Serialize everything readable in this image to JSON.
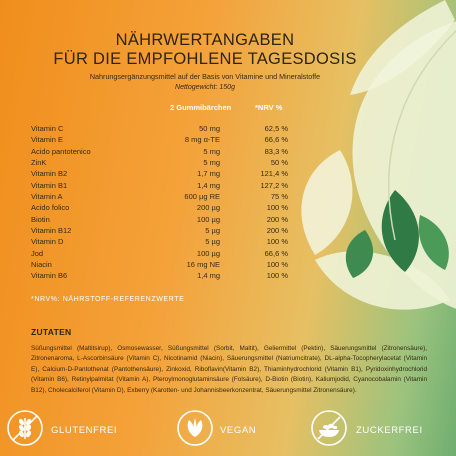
{
  "header": {
    "title_line1": "NÄHRWERTANGABEN",
    "title_line2": "FÜR DIE EMPFOHLENE TAGESDOSIS",
    "subtitle": "Nahrungsergänzungsmittel auf der Basis von Vitamine und Mineralstoffe",
    "net_weight": "Nettogewicht: 150g"
  },
  "table": {
    "col_amount": "2 Gummibärchen",
    "col_nrv": "*NRV %",
    "rows": [
      {
        "name": "Vitamin C",
        "amount": "50 mg",
        "nrv": "62,5 %"
      },
      {
        "name": "Vitamin E",
        "amount": "8 mg α-TE",
        "nrv": "66,6 %"
      },
      {
        "name": "Acido pantotenico",
        "amount": "5 mg",
        "nrv": "83,3 %"
      },
      {
        "name": "ZinK",
        "amount": "5 mg",
        "nrv": "50 %"
      },
      {
        "name": "Vitamin B2",
        "amount": "1,7 mg",
        "nrv": "121,4 %"
      },
      {
        "name": "Vitamin B1",
        "amount": "1,4 mg",
        "nrv": "127,2 %"
      },
      {
        "name": "Vitamin A",
        "amount": "600 µg RE",
        "nrv": "75 %"
      },
      {
        "name": "Acido folico",
        "amount": "200 µg",
        "nrv": "100 %"
      },
      {
        "name": "Biotin",
        "amount": "100 µg",
        "nrv": "200 %"
      },
      {
        "name": "Vitamin B12",
        "amount": "5 µg",
        "nrv": "200 %"
      },
      {
        "name": "Vitamin D",
        "amount": "5 µg",
        "nrv": "100 %"
      },
      {
        "name": "Jod",
        "amount": "100 µg",
        "nrv": "66,6 %"
      },
      {
        "name": "Niacin",
        "amount": "16 mg NE",
        "nrv": "100 %"
      },
      {
        "name": "Vitamin B6",
        "amount": "1,4 mg",
        "nrv": "100 %"
      }
    ],
    "footnote": "*NRV%: NÄHRSTOFF-REFERENZWERTE"
  },
  "ingredients": {
    "title": "ZUTATEN",
    "text": "Süßungsmittel (Maltitsirup), Osmosewasser, Süßungsmittel (Sorbit, Maltit), Geliermittel (Pektin), Säuerungsmittel (Zitronensäure), Zitronenaroma, L-Ascorbinsäure (Vitamin C), Nicotinamid (Niacin), Säuerungsmittel (Natriumcitrate), DL-alpha-Tocopherylacetat (Vitamin E), Calcium-D-Pantothenat (Pantothensäure), Zinkoxid, Riboflavin(Vitamin B2), Thiaminhydrochlorid (Vitamin B1), Pyridoxinhydrochlorid (Vitamin B6), Retinylpalmitat (Vitamin A), Pteroylmonoglutaminsäure (Folsäure), D-Biotin (Biotin), Kaliumjodid, Cyanocobalamin (Vitamin B12), Cholecalciferol (Vitamin D), Exberry (Karotten- und Johannisbeerkonzentrat, Säuerungsmittel Zitronensäure)."
  },
  "badges": {
    "gluten": {
      "label": "GLUTENFREI",
      "icon": "wheat-icon"
    },
    "vegan": {
      "label": "VEGAN",
      "icon": "leaf-icon"
    },
    "sugar": {
      "label": "ZUCKERFREI",
      "icon": "sugar-free-icon"
    }
  },
  "colors": {
    "background_orange": "#f08e1c",
    "leaf_light": "#eef3d6",
    "leaf_dark": "#2f7a45",
    "text_white": "#ffffff"
  }
}
